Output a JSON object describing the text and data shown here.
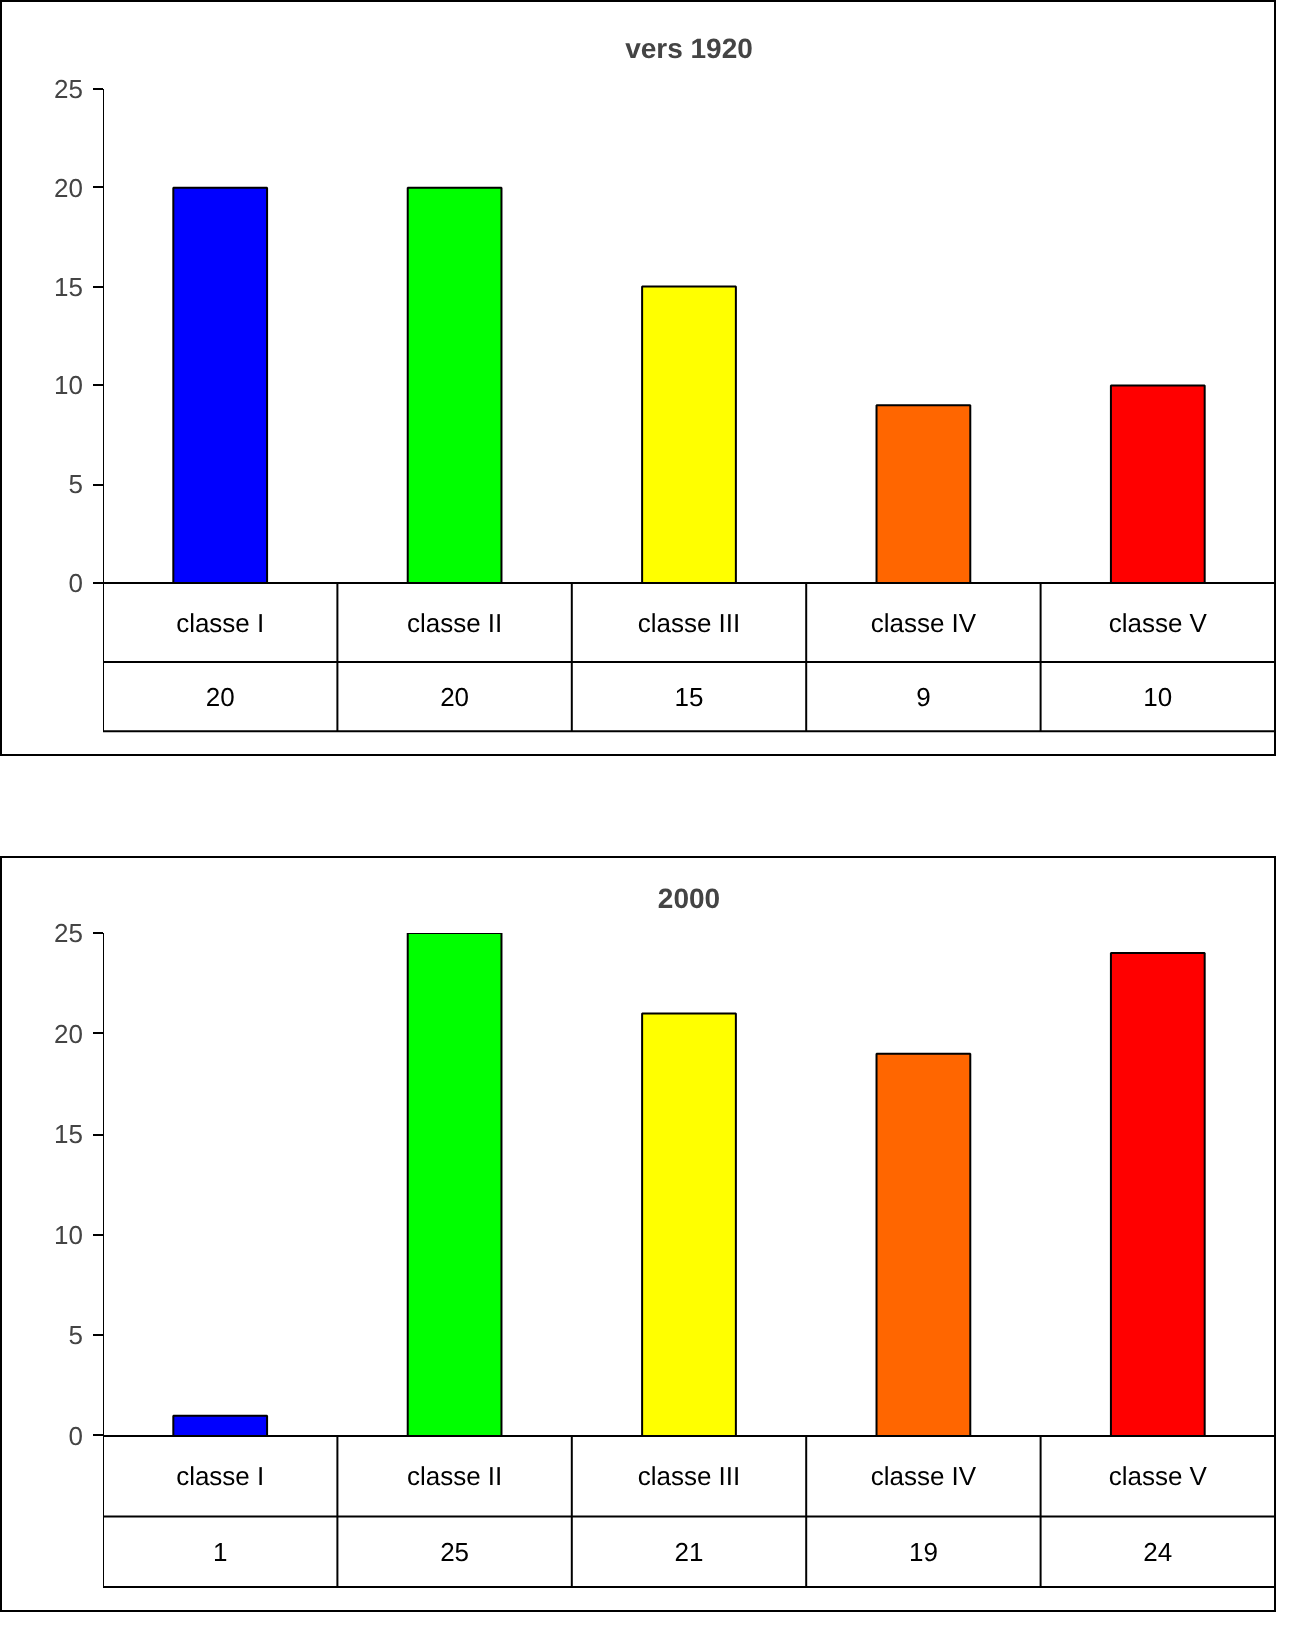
{
  "chart_data": [
    {
      "type": "bar",
      "title": "vers 1920",
      "categories": [
        "classe I",
        "classe II",
        "classe III",
        "classe IV",
        "classe V"
      ],
      "values": [
        20,
        20,
        15,
        9,
        10
      ],
      "colors": [
        "#0000ff",
        "#00ff00",
        "#ffff00",
        "#ff6600",
        "#ff0000"
      ],
      "ylim": [
        0,
        25
      ],
      "yticks": [
        0,
        5,
        10,
        15,
        20,
        25
      ],
      "data_labels": true
    },
    {
      "type": "bar",
      "title": "2000",
      "categories": [
        "classe I",
        "classe II",
        "classe III",
        "classe IV",
        "classe V"
      ],
      "values": [
        1,
        25,
        21,
        19,
        24
      ],
      "colors": [
        "#0000ff",
        "#00ff00",
        "#ffff00",
        "#ff6600",
        "#ff0000"
      ],
      "ylim": [
        0,
        25
      ],
      "yticks": [
        0,
        5,
        10,
        15,
        20,
        25
      ],
      "data_labels": true
    }
  ]
}
